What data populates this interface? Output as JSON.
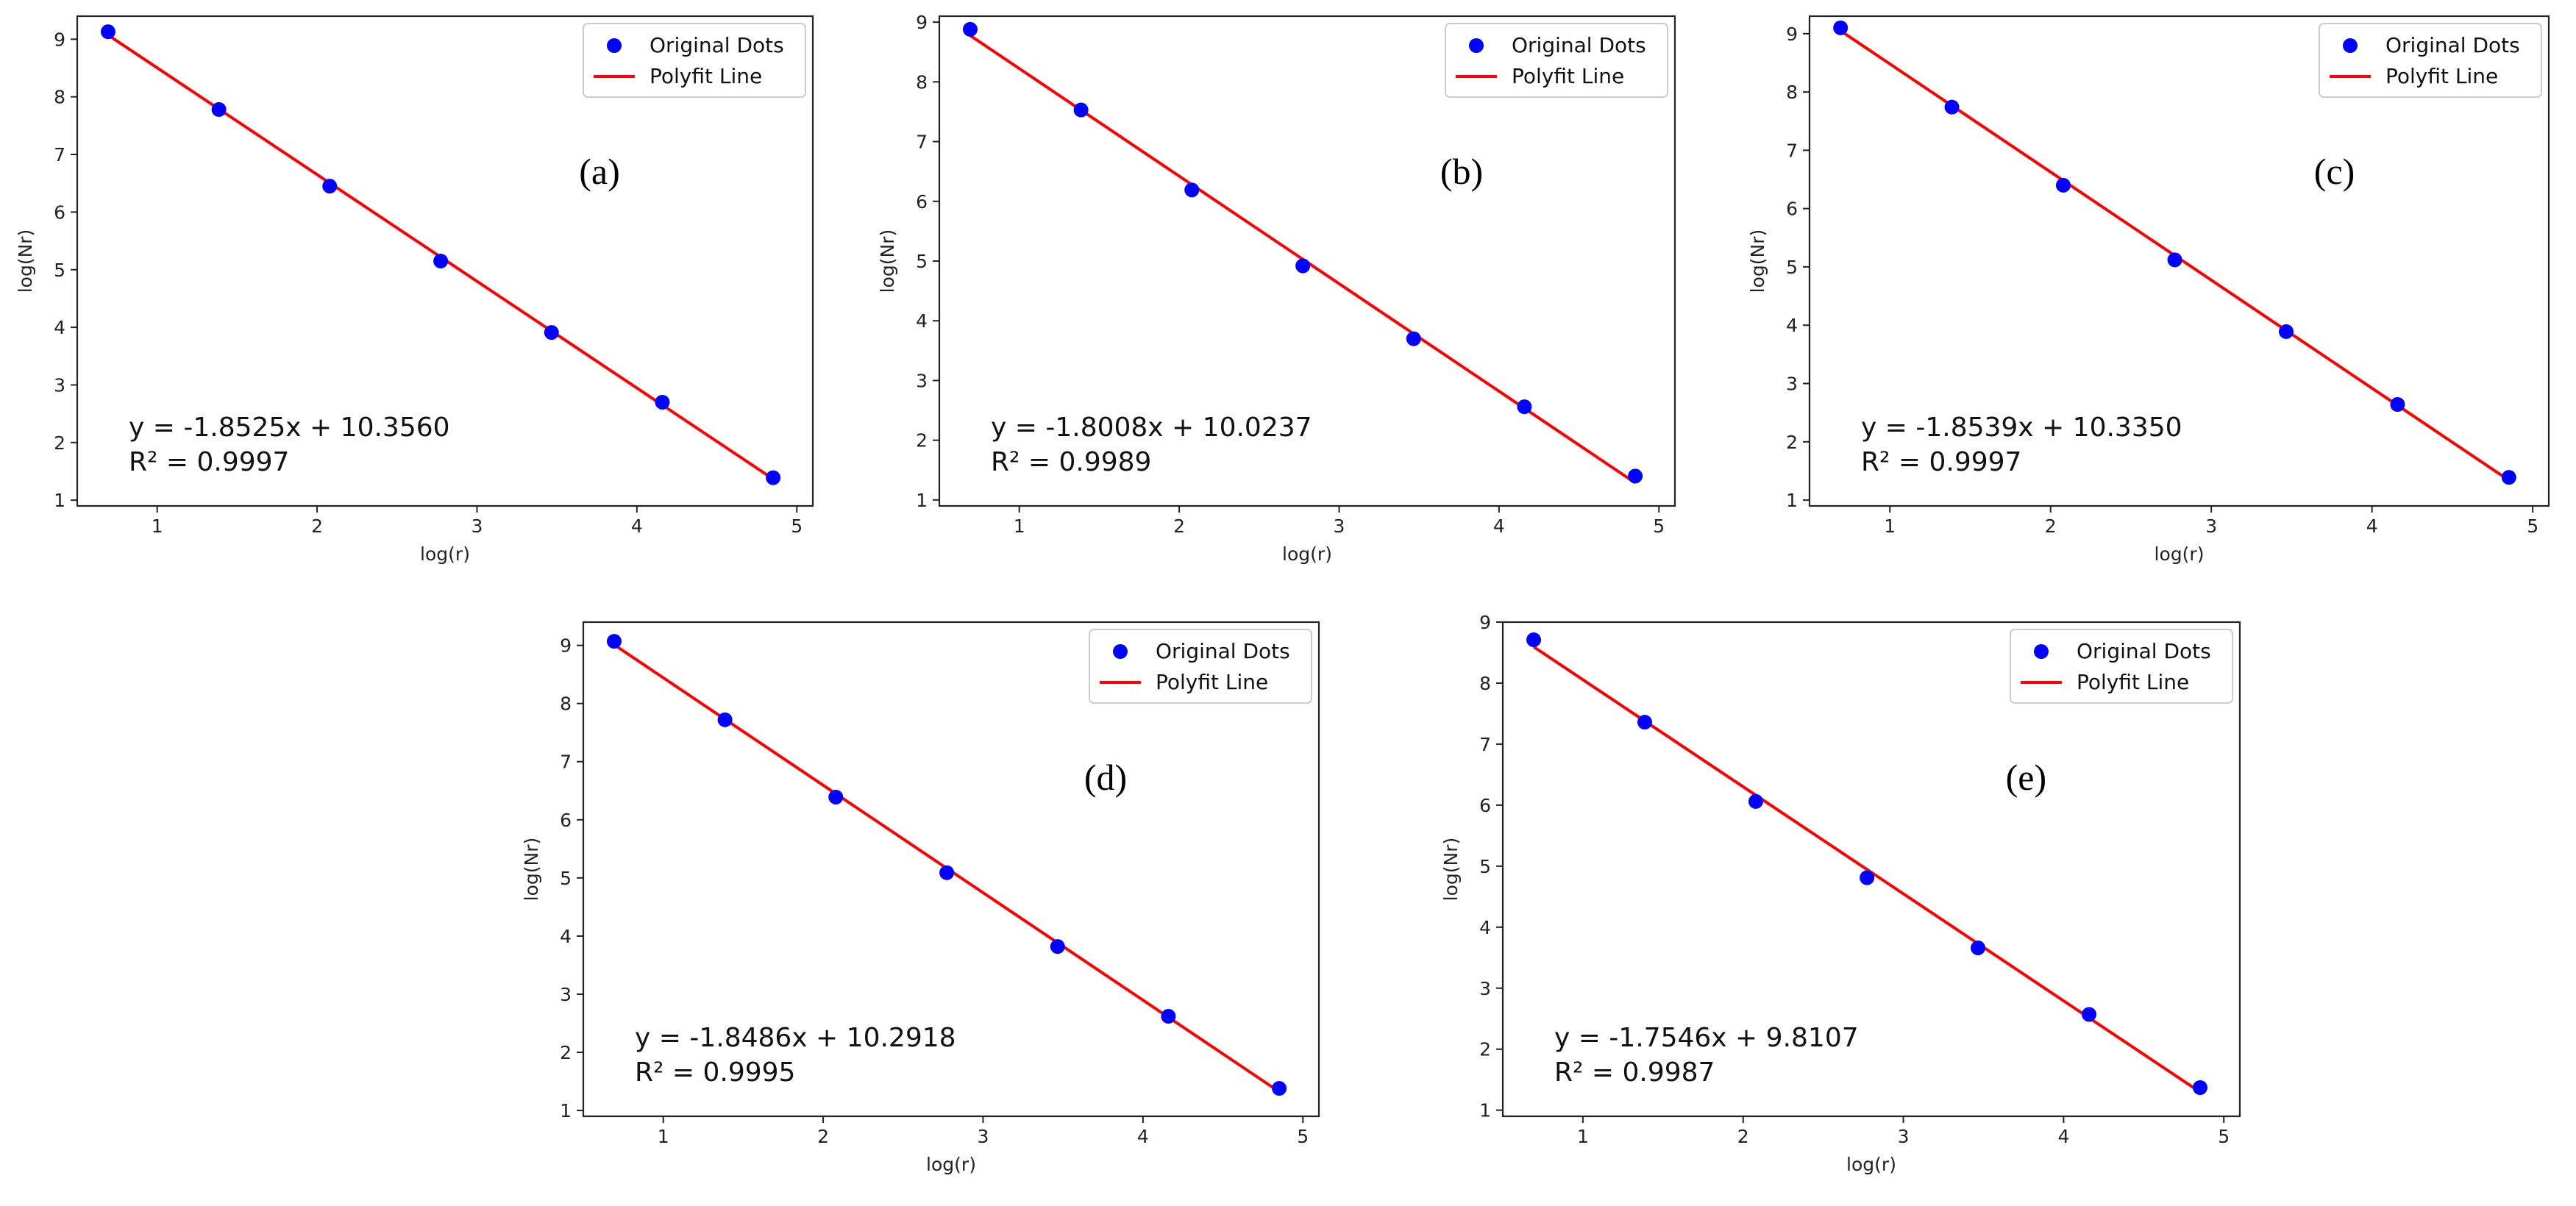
{
  "figure": {
    "description_labels": {
      "dots_label": "Original Dots",
      "line_label": "Polyfit Line"
    }
  },
  "chart_data": [
    {
      "panel": "(a)",
      "type": "scatter",
      "title": "",
      "xlabel": "log(r)",
      "ylabel": "log(Nr)",
      "xlim": [
        0.5,
        5.1
      ],
      "ylim": [
        0.9,
        9.4
      ],
      "xticks": [
        1,
        2,
        3,
        4,
        5
      ],
      "yticks": [
        1,
        2,
        3,
        4,
        5,
        6,
        7,
        8,
        9
      ],
      "legend": {
        "position": "top-right",
        "entries": [
          "Original Dots",
          "Polyfit Line"
        ]
      },
      "series": [
        {
          "name": "Original Dots",
          "kind": "scatter",
          "color": "#0000ff",
          "x": [
            0.693,
            1.386,
            2.079,
            2.773,
            3.466,
            4.159,
            4.852
          ],
          "y": [
            9.13,
            7.78,
            6.45,
            5.15,
            3.91,
            2.7,
            1.39
          ]
        },
        {
          "name": "Polyfit Line",
          "kind": "line",
          "color": "#ff0000",
          "slope": -1.8525,
          "intercept": 10.356
        }
      ],
      "annotation": {
        "equation": "y = -1.8525x + 10.3560",
        "r2": "R² = 0.9997"
      }
    },
    {
      "panel": "(b)",
      "type": "scatter",
      "title": "",
      "xlabel": "log(r)",
      "ylabel": "log(Nr)",
      "xlim": [
        0.5,
        5.1
      ],
      "ylim": [
        0.9,
        9.1
      ],
      "xticks": [
        1,
        2,
        3,
        4,
        5
      ],
      "yticks": [
        1,
        2,
        3,
        4,
        5,
        6,
        7,
        8,
        9
      ],
      "legend": {
        "position": "top-right",
        "entries": [
          "Original Dots",
          "Polyfit Line"
        ]
      },
      "series": [
        {
          "name": "Original Dots",
          "kind": "scatter",
          "color": "#0000ff",
          "x": [
            0.693,
            1.386,
            2.079,
            2.773,
            3.466,
            4.159,
            4.852
          ],
          "y": [
            8.88,
            7.53,
            6.19,
            4.92,
            3.7,
            2.56,
            1.4
          ]
        },
        {
          "name": "Polyfit Line",
          "kind": "line",
          "color": "#ff0000",
          "slope": -1.8008,
          "intercept": 10.0237
        }
      ],
      "annotation": {
        "equation": "y = -1.8008x + 10.0237",
        "r2": "R² = 0.9989"
      }
    },
    {
      "panel": "(c)",
      "type": "scatter",
      "title": "",
      "xlabel": "log(r)",
      "ylabel": "log(Nr)",
      "xlim": [
        0.5,
        5.1
      ],
      "ylim": [
        0.9,
        9.3
      ],
      "xticks": [
        1,
        2,
        3,
        4,
        5
      ],
      "yticks": [
        1,
        2,
        3,
        4,
        5,
        6,
        7,
        8,
        9
      ],
      "legend": {
        "position": "top-right",
        "entries": [
          "Original Dots",
          "Polyfit Line"
        ]
      },
      "series": [
        {
          "name": "Original Dots",
          "kind": "scatter",
          "color": "#0000ff",
          "x": [
            0.693,
            1.386,
            2.079,
            2.773,
            3.466,
            4.159,
            4.852
          ],
          "y": [
            9.1,
            7.74,
            6.4,
            5.12,
            3.89,
            2.64,
            1.39
          ]
        },
        {
          "name": "Polyfit Line",
          "kind": "line",
          "color": "#ff0000",
          "slope": -1.8539,
          "intercept": 10.335
        }
      ],
      "annotation": {
        "equation": "y = -1.8539x + 10.3350",
        "r2": "R² = 0.9997"
      }
    },
    {
      "panel": "(d)",
      "type": "scatter",
      "title": "",
      "xlabel": "log(r)",
      "ylabel": "log(Nr)",
      "xlim": [
        0.5,
        5.1
      ],
      "ylim": [
        0.9,
        9.4
      ],
      "xticks": [
        1,
        2,
        3,
        4,
        5
      ],
      "yticks": [
        1,
        2,
        3,
        4,
        5,
        6,
        7,
        8,
        9
      ],
      "legend": {
        "position": "top-right",
        "entries": [
          "Original Dots",
          "Polyfit Line"
        ]
      },
      "series": [
        {
          "name": "Original Dots",
          "kind": "scatter",
          "color": "#0000ff",
          "x": [
            0.693,
            1.386,
            2.079,
            2.773,
            3.466,
            4.159,
            4.852
          ],
          "y": [
            9.07,
            7.72,
            6.39,
            5.09,
            3.82,
            2.62,
            1.38
          ]
        },
        {
          "name": "Polyfit Line",
          "kind": "line",
          "color": "#ff0000",
          "slope": -1.8486,
          "intercept": 10.2918
        }
      ],
      "annotation": {
        "equation": "y = -1.8486x + 10.2918",
        "r2": "R² = 0.9995"
      }
    },
    {
      "panel": "(e)",
      "type": "scatter",
      "title": "",
      "xlabel": "log(r)",
      "ylabel": "log(Nr)",
      "xlim": [
        0.5,
        5.1
      ],
      "ylim": [
        0.9,
        9.0
      ],
      "xticks": [
        1,
        2,
        3,
        4,
        5
      ],
      "yticks": [
        1,
        2,
        3,
        4,
        5,
        6,
        7,
        8,
        9
      ],
      "legend": {
        "position": "top-right",
        "entries": [
          "Original Dots",
          "Polyfit Line"
        ]
      },
      "series": [
        {
          "name": "Original Dots",
          "kind": "scatter",
          "color": "#0000ff",
          "x": [
            0.693,
            1.386,
            2.079,
            2.773,
            3.466,
            4.159,
            4.852
          ],
          "y": [
            8.71,
            7.36,
            6.06,
            4.81,
            3.66,
            2.57,
            1.37
          ]
        },
        {
          "name": "Polyfit Line",
          "kind": "line",
          "color": "#ff0000",
          "slope": -1.7546,
          "intercept": 9.8107
        }
      ],
      "annotation": {
        "equation": "y = -1.7546x + 9.8107",
        "r2": "R² = 0.9987"
      }
    }
  ]
}
